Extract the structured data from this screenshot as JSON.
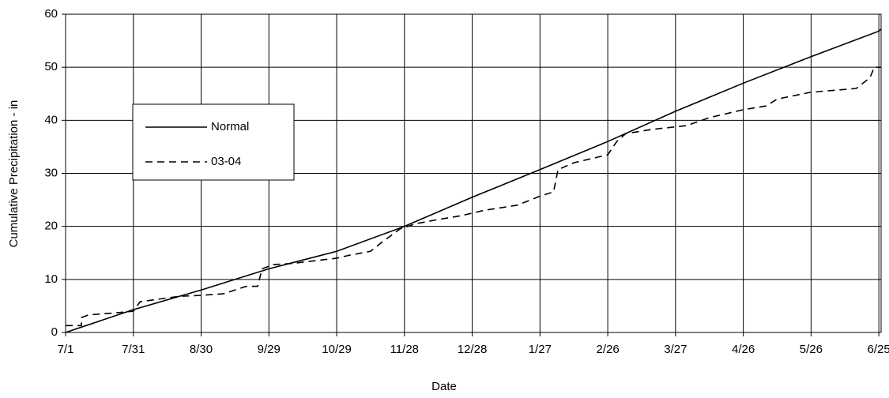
{
  "chart_data": {
    "type": "line",
    "x_label": "Date",
    "y_label": "Cumulative Precipitation - in",
    "xlim": [
      0,
      361
    ],
    "ylim": [
      0,
      60
    ],
    "xticks": [
      {
        "value": 0,
        "label": "7/1"
      },
      {
        "value": 30,
        "label": "7/31"
      },
      {
        "value": 60,
        "label": "8/30"
      },
      {
        "value": 90,
        "label": "9/29"
      },
      {
        "value": 120,
        "label": "10/29"
      },
      {
        "value": 150,
        "label": "11/28"
      },
      {
        "value": 180,
        "label": "12/28"
      },
      {
        "value": 210,
        "label": "1/27"
      },
      {
        "value": 240,
        "label": "2/26"
      },
      {
        "value": 270,
        "label": "3/27"
      },
      {
        "value": 300,
        "label": "4/26"
      },
      {
        "value": 330,
        "label": "5/26"
      },
      {
        "value": 360,
        "label": "6/25"
      }
    ],
    "yticks": [
      0,
      10,
      20,
      30,
      40,
      50,
      60
    ],
    "grid": true,
    "series": [
      {
        "name": "Normal",
        "color": "#000000",
        "dash": "none",
        "x": [
          0,
          30,
          60,
          90,
          120,
          150,
          180,
          210,
          240,
          270,
          300,
          330,
          360,
          361
        ],
        "values": [
          0,
          4.3,
          8,
          12,
          15.3,
          20,
          25.5,
          30.7,
          36,
          41.7,
          47,
          52,
          56.8,
          57.2
        ]
      },
      {
        "name": "03-04",
        "color": "#000000",
        "dash": "9,6",
        "x": [
          0,
          7,
          7,
          10,
          25,
          30,
          33,
          40,
          50,
          60,
          70,
          80,
          85,
          87,
          92,
          100,
          120,
          125,
          135,
          140,
          148,
          155,
          165,
          175,
          185,
          200,
          210,
          216,
          218,
          225,
          235,
          240,
          244,
          248,
          260,
          275,
          285,
          300,
          310,
          315,
          330,
          350,
          356,
          358,
          361
        ],
        "values": [
          1.3,
          1.3,
          2.8,
          3.3,
          3.8,
          4,
          5.8,
          6.2,
          6.8,
          7,
          7.3,
          8.7,
          8.7,
          12,
          12.8,
          13,
          14,
          14.5,
          15.3,
          17,
          19.5,
          20.5,
          21.3,
          22,
          23,
          24,
          25.7,
          26.5,
          30.7,
          32,
          33,
          33.5,
          36,
          37.5,
          38.3,
          39,
          40.5,
          42,
          42.7,
          44,
          45.3,
          46,
          48,
          50,
          50
        ]
      }
    ]
  }
}
